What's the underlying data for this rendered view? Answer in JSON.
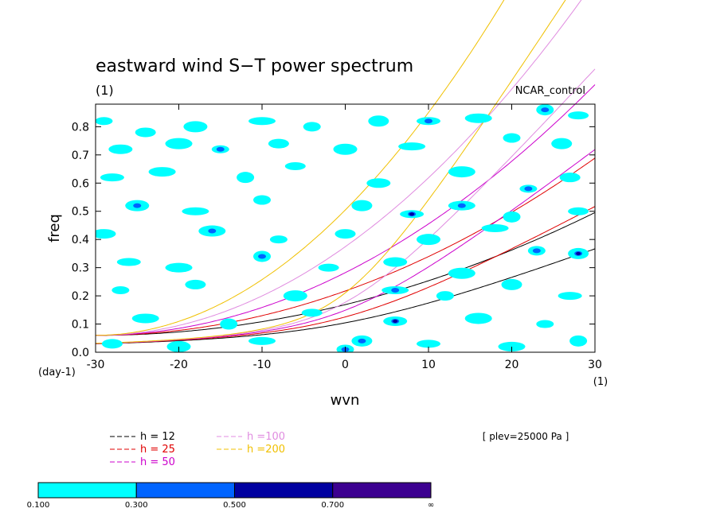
{
  "chart_data": {
    "type": "heatmap",
    "title": "eastward wind S−T power spectrum",
    "title_unit": "(1)",
    "model_label": "NCAR_control",
    "xlabel": "wvn",
    "ylabel": "freq",
    "x_unit": "(1)",
    "y_unit": "(day-1)",
    "xlim": [
      -30,
      30
    ],
    "ylim": [
      0.0,
      0.88
    ],
    "xticks": [
      "-30",
      "-20",
      "-10",
      "0",
      "10",
      "20",
      "30"
    ],
    "yticks": [
      "0.0",
      "0.1",
      "0.2",
      "0.3",
      "0.4",
      "0.5",
      "0.6",
      "0.7",
      "0.8"
    ],
    "level_label": "[ plev=25000 Pa ]",
    "dispersion_curves": [
      {
        "name": "h = 12",
        "h": 12,
        "color": "#000000"
      },
      {
        "name": "h = 25",
        "h": 25,
        "color": "#e00000"
      },
      {
        "name": "h = 50",
        "h": 50,
        "color": "#cc00cc"
      },
      {
        "name": "h =100",
        "h": 100,
        "color": "#e08ce0"
      },
      {
        "name": "h =200",
        "h": 200,
        "color": "#f0c000"
      }
    ],
    "colorbar": {
      "labels": [
        "0.100",
        "0.300",
        "0.500",
        "0.700",
        "∞"
      ],
      "colors": [
        "#00ffff",
        "#0064ff",
        "#0000a0",
        "#3c0090"
      ]
    },
    "contour_blobs": [
      {
        "x": -29,
        "y": 0.82,
        "level": 0
      },
      {
        "x": -24,
        "y": 0.78,
        "level": 0
      },
      {
        "x": -18,
        "y": 0.8,
        "level": 0
      },
      {
        "x": -10,
        "y": 0.82,
        "level": 0
      },
      {
        "x": -4,
        "y": 0.8,
        "level": 0
      },
      {
        "x": 4,
        "y": 0.82,
        "level": 0
      },
      {
        "x": 10,
        "y": 0.82,
        "level": 1
      },
      {
        "x": 16,
        "y": 0.83,
        "level": 0
      },
      {
        "x": 24,
        "y": 0.86,
        "level": 1
      },
      {
        "x": 28,
        "y": 0.84,
        "level": 0
      },
      {
        "x": -27,
        "y": 0.72,
        "level": 0
      },
      {
        "x": -20,
        "y": 0.74,
        "level": 0
      },
      {
        "x": -15,
        "y": 0.72,
        "level": 1
      },
      {
        "x": -8,
        "y": 0.74,
        "level": 0
      },
      {
        "x": 0,
        "y": 0.72,
        "level": 0
      },
      {
        "x": 8,
        "y": 0.73,
        "level": 0
      },
      {
        "x": 20,
        "y": 0.76,
        "level": 0
      },
      {
        "x": 26,
        "y": 0.74,
        "level": 0
      },
      {
        "x": -28,
        "y": 0.62,
        "level": 0
      },
      {
        "x": -22,
        "y": 0.64,
        "level": 0
      },
      {
        "x": -12,
        "y": 0.62,
        "level": 0
      },
      {
        "x": -6,
        "y": 0.66,
        "level": 0
      },
      {
        "x": 4,
        "y": 0.6,
        "level": 0
      },
      {
        "x": 14,
        "y": 0.64,
        "level": 0
      },
      {
        "x": 22,
        "y": 0.58,
        "level": 1
      },
      {
        "x": 27,
        "y": 0.62,
        "level": 0
      },
      {
        "x": -25,
        "y": 0.52,
        "level": 1
      },
      {
        "x": -18,
        "y": 0.5,
        "level": 0
      },
      {
        "x": -10,
        "y": 0.54,
        "level": 0
      },
      {
        "x": 2,
        "y": 0.52,
        "level": 0
      },
      {
        "x": 8,
        "y": 0.49,
        "level": 2
      },
      {
        "x": 14,
        "y": 0.52,
        "level": 1
      },
      {
        "x": 20,
        "y": 0.48,
        "level": 0
      },
      {
        "x": 28,
        "y": 0.5,
        "level": 0
      },
      {
        "x": -29,
        "y": 0.42,
        "level": 0
      },
      {
        "x": -16,
        "y": 0.43,
        "level": 1
      },
      {
        "x": -8,
        "y": 0.4,
        "level": 0
      },
      {
        "x": 0,
        "y": 0.42,
        "level": 0
      },
      {
        "x": 10,
        "y": 0.4,
        "level": 0
      },
      {
        "x": 18,
        "y": 0.44,
        "level": 0
      },
      {
        "x": 23,
        "y": 0.36,
        "level": 1
      },
      {
        "x": 28,
        "y": 0.35,
        "level": 2
      },
      {
        "x": -26,
        "y": 0.32,
        "level": 0
      },
      {
        "x": -20,
        "y": 0.3,
        "level": 0
      },
      {
        "x": -10,
        "y": 0.34,
        "level": 1
      },
      {
        "x": -2,
        "y": 0.3,
        "level": 0
      },
      {
        "x": 6,
        "y": 0.32,
        "level": 0
      },
      {
        "x": 14,
        "y": 0.28,
        "level": 0
      },
      {
        "x": -27,
        "y": 0.22,
        "level": 0
      },
      {
        "x": -18,
        "y": 0.24,
        "level": 0
      },
      {
        "x": -6,
        "y": 0.2,
        "level": 0
      },
      {
        "x": 6,
        "y": 0.22,
        "level": 1
      },
      {
        "x": 12,
        "y": 0.2,
        "level": 0
      },
      {
        "x": 20,
        "y": 0.24,
        "level": 0
      },
      {
        "x": 27,
        "y": 0.2,
        "level": 0
      },
      {
        "x": -24,
        "y": 0.12,
        "level": 0
      },
      {
        "x": -14,
        "y": 0.1,
        "level": 0
      },
      {
        "x": -4,
        "y": 0.14,
        "level": 0
      },
      {
        "x": 6,
        "y": 0.11,
        "level": 2
      },
      {
        "x": 16,
        "y": 0.12,
        "level": 0
      },
      {
        "x": 24,
        "y": 0.1,
        "level": 0
      },
      {
        "x": -28,
        "y": 0.03,
        "level": 0
      },
      {
        "x": -20,
        "y": 0.02,
        "level": 0
      },
      {
        "x": -10,
        "y": 0.04,
        "level": 0
      },
      {
        "x": 0,
        "y": 0.01,
        "level": 1
      },
      {
        "x": 2,
        "y": 0.04,
        "level": 1
      },
      {
        "x": 10,
        "y": 0.03,
        "level": 0
      },
      {
        "x": 20,
        "y": 0.02,
        "level": 0
      },
      {
        "x": 28,
        "y": 0.04,
        "level": 0
      }
    ]
  }
}
